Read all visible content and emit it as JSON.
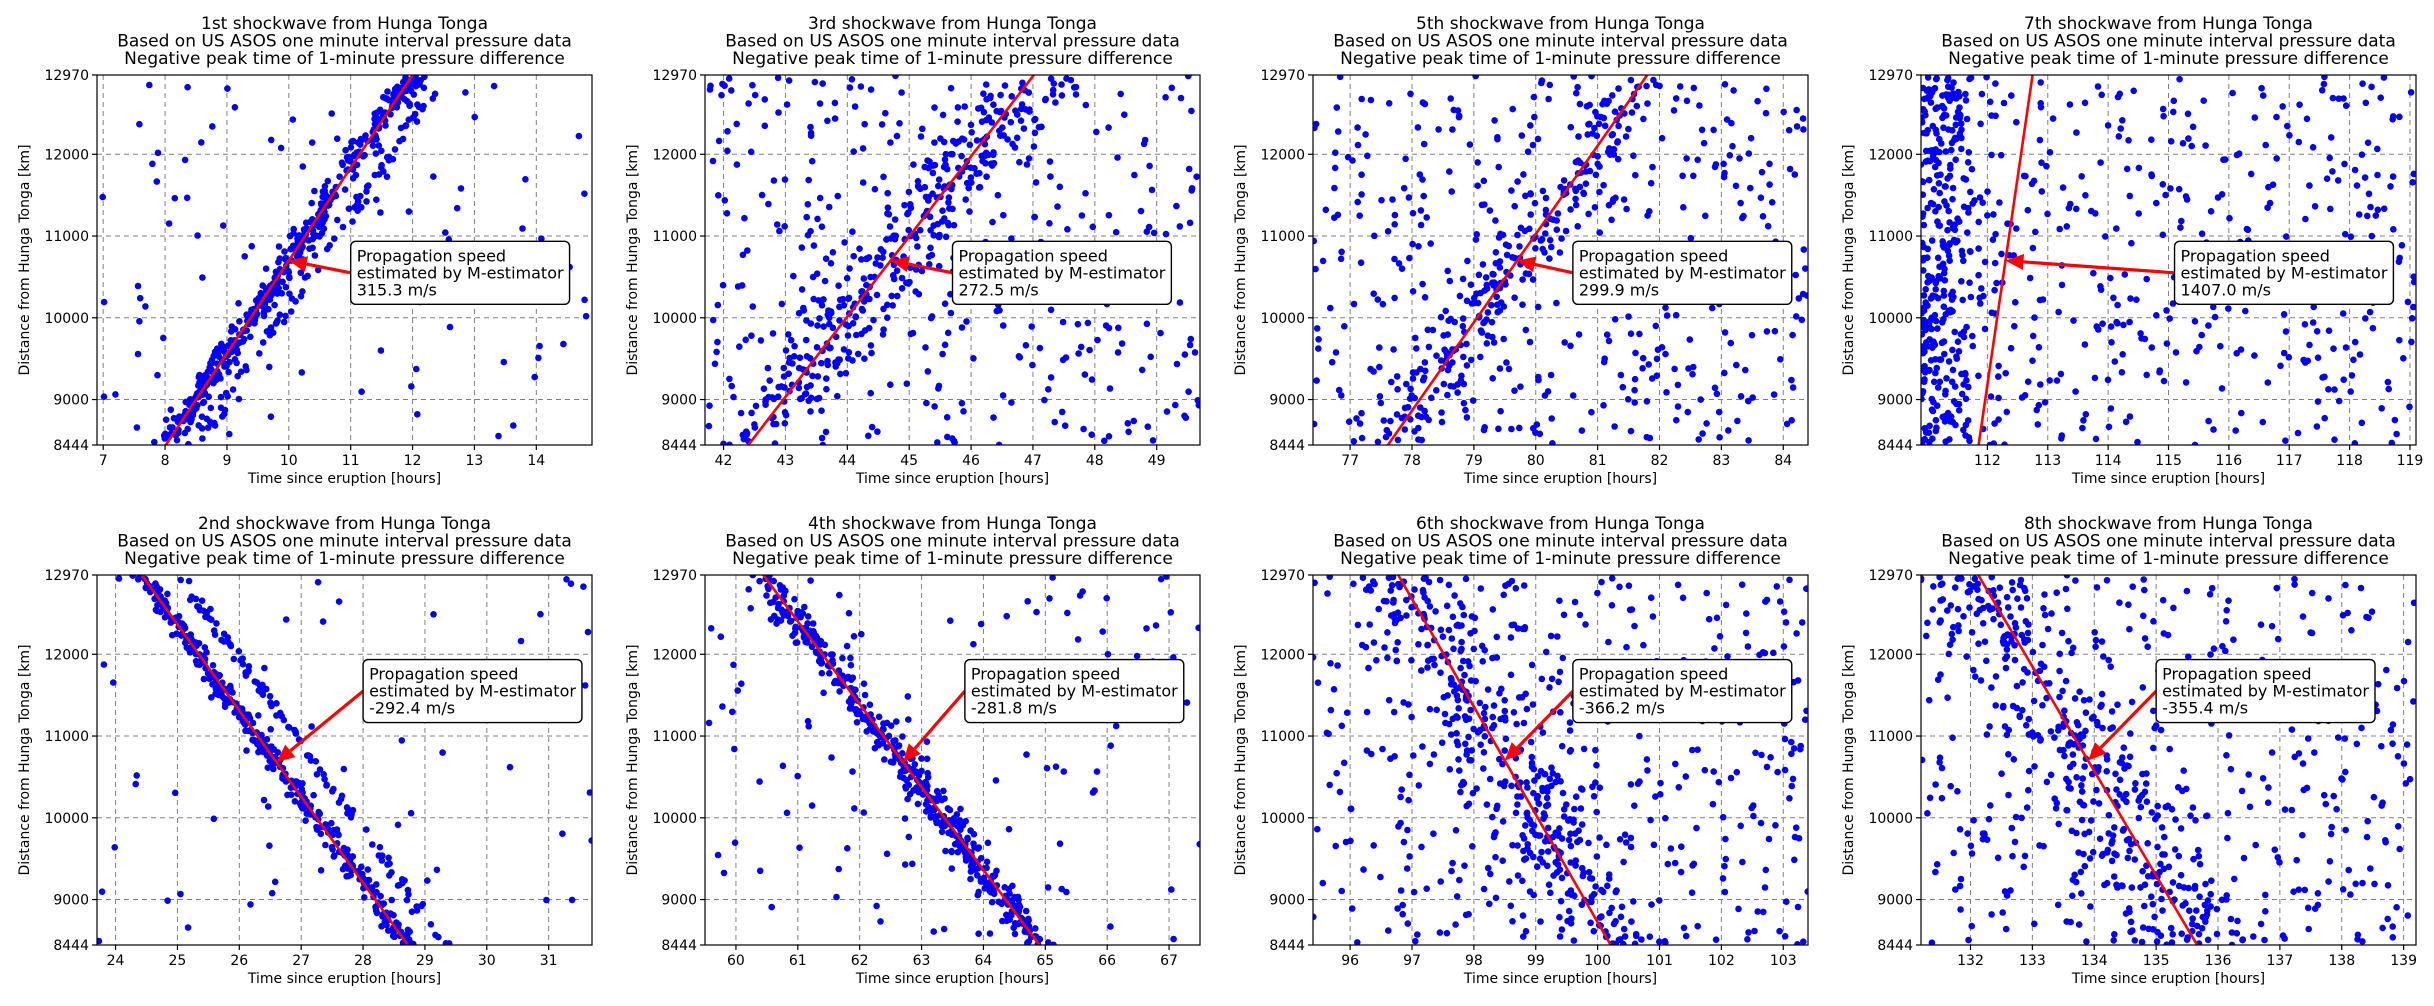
{
  "chart_data": [
    {
      "type": "scatter",
      "title": [
        "1st shockwave from Hunga Tonga",
        "Based on US ASOS one minute interval pressure data",
        "Negative peak time of 1-minute pressure difference"
      ],
      "xlabel": "Time since eruption [hours]",
      "ylabel": "Distance from Hunga Tonga [km]",
      "xlim": [
        6.9,
        14.9
      ],
      "ylim": [
        8444,
        12970
      ],
      "xticks": [
        7,
        8,
        9,
        10,
        11,
        12,
        13,
        14
      ],
      "yticks": [
        8444,
        9000,
        10000,
        11000,
        12000,
        12970
      ],
      "grid": true,
      "fit_line": {
        "slope_per_hour": 1135,
        "x0": 10.0,
        "y0": 10700,
        "color": "#ff0000"
      },
      "annotation": {
        "lines": [
          "Propagation speed",
          "estimated by M-estimator",
          "315.3 m/s"
        ],
        "arrow_target": [
          10.0,
          10700
        ],
        "box_anchor": [
          11.0,
          10550
        ]
      },
      "series_color": "#0000ff",
      "scatter": {
        "n_fit": 420,
        "n_fit2": 90,
        "n_noise": 90,
        "fit_spread": 0.12,
        "offset2": 0.5
      }
    },
    {
      "type": "scatter",
      "title": [
        "2nd shockwave from Hunga Tonga",
        "Based on US ASOS one minute interval pressure data",
        "Negative peak time of 1-minute pressure difference"
      ],
      "xlabel": "Time since eruption [hours]",
      "ylabel": "Distance from Hunga Tonga [km]",
      "xlim": [
        23.7,
        31.7
      ],
      "ylim": [
        8444,
        12970
      ],
      "xticks": [
        24,
        25,
        26,
        27,
        28,
        29,
        30,
        31
      ],
      "yticks": [
        8444,
        9000,
        10000,
        11000,
        12000,
        12970
      ],
      "grid": true,
      "fit_line": {
        "slope_per_hour": -1053,
        "x0": 26.6,
        "y0": 10680,
        "color": "#ff0000"
      },
      "annotation": {
        "lines": [
          "Propagation speed",
          "estimated by M-estimator",
          "-292.4 m/s"
        ],
        "arrow_target": [
          26.6,
          10680
        ],
        "box_anchor": [
          28.0,
          11550
        ]
      },
      "series_color": "#0000ff",
      "scatter": {
        "n_fit": 360,
        "n_fit2": 110,
        "n_noise": 60,
        "fit_spread": 0.09,
        "offset2": 0.6
      }
    },
    {
      "type": "scatter",
      "title": [
        "3rd shockwave from Hunga Tonga",
        "Based on US ASOS one minute interval pressure data",
        "Negative peak time of 1-minute pressure difference"
      ],
      "xlabel": "Time since eruption [hours]",
      "ylabel": "Distance from Hunga Tonga [km]",
      "xlim": [
        41.7,
        49.7
      ],
      "ylim": [
        8444,
        12970
      ],
      "xticks": [
        42,
        43,
        44,
        45,
        46,
        47,
        48,
        49
      ],
      "yticks": [
        8444,
        9000,
        10000,
        11000,
        12000,
        12970
      ],
      "grid": true,
      "fit_line": {
        "slope_per_hour": 981,
        "x0": 44.7,
        "y0": 10700,
        "color": "#ff0000"
      },
      "annotation": {
        "lines": [
          "Propagation speed",
          "estimated by M-estimator",
          "272.5 m/s"
        ],
        "arrow_target": [
          44.7,
          10700
        ],
        "box_anchor": [
          45.7,
          10550
        ]
      },
      "series_color": "#0000ff",
      "scatter": {
        "n_fit": 330,
        "n_fit2": 0,
        "n_noise": 360,
        "fit_spread": 0.45,
        "offset2": 0
      }
    },
    {
      "type": "scatter",
      "title": [
        "4th shockwave from Hunga Tonga",
        "Based on US ASOS one minute interval pressure data",
        "Negative peak time of 1-minute pressure difference"
      ],
      "xlabel": "Time since eruption [hours]",
      "ylabel": "Distance from Hunga Tonga [km]",
      "xlim": [
        59.5,
        67.5
      ],
      "ylim": [
        8444,
        12970
      ],
      "xticks": [
        60,
        61,
        62,
        63,
        64,
        65,
        66,
        67
      ],
      "yticks": [
        8444,
        9000,
        10000,
        11000,
        12000,
        12970
      ],
      "grid": true,
      "fit_line": {
        "slope_per_hour": -1014,
        "x0": 62.7,
        "y0": 10680,
        "color": "#ff0000"
      },
      "annotation": {
        "lines": [
          "Propagation speed",
          "estimated by M-estimator",
          "-281.8 m/s"
        ],
        "arrow_target": [
          62.7,
          10680
        ],
        "box_anchor": [
          63.7,
          11550
        ]
      },
      "series_color": "#0000ff",
      "scatter": {
        "n_fit": 420,
        "n_fit2": 0,
        "n_noise": 120,
        "fit_spread": 0.14,
        "offset2": 0
      }
    },
    {
      "type": "scatter",
      "title": [
        "5th shockwave from Hunga Tonga",
        "Based on US ASOS one minute interval pressure data",
        "Negative peak time of 1-minute pressure difference"
      ],
      "xlabel": "Time since eruption [hours]",
      "ylabel": "Distance from Hunga Tonga [km]",
      "xlim": [
        76.4,
        84.4
      ],
      "ylim": [
        8444,
        12970
      ],
      "xticks": [
        77,
        78,
        79,
        80,
        81,
        82,
        83,
        84
      ],
      "yticks": [
        8444,
        9000,
        10000,
        11000,
        12000,
        12970
      ],
      "grid": true,
      "fit_line": {
        "slope_per_hour": 1080,
        "x0": 79.7,
        "y0": 10700,
        "color": "#ff0000"
      },
      "annotation": {
        "lines": [
          "Propagation speed",
          "estimated by M-estimator",
          "299.9 m/s"
        ],
        "arrow_target": [
          79.7,
          10700
        ],
        "box_anchor": [
          80.6,
          10550
        ]
      },
      "series_color": "#0000ff",
      "scatter": {
        "n_fit": 230,
        "n_fit2": 0,
        "n_noise": 420,
        "fit_spread": 0.35,
        "offset2": 0
      }
    },
    {
      "type": "scatter",
      "title": [
        "6th shockwave from Hunga Tonga",
        "Based on US ASOS one minute interval pressure data",
        "Negative peak time of 1-minute pressure difference"
      ],
      "xlabel": "Time since eruption [hours]",
      "ylabel": "Distance from Hunga Tonga [km]",
      "xlim": [
        95.4,
        103.4
      ],
      "ylim": [
        8444,
        12970
      ],
      "xticks": [
        96,
        97,
        98,
        99,
        100,
        101,
        102,
        103
      ],
      "yticks": [
        8444,
        9000,
        10000,
        11000,
        12000,
        12970
      ],
      "grid": true,
      "fit_line": {
        "slope_per_hour": -1318,
        "x0": 98.5,
        "y0": 10700,
        "color": "#ff0000"
      },
      "annotation": {
        "lines": [
          "Propagation speed",
          "estimated by M-estimator",
          "-366.2 m/s"
        ],
        "arrow_target": [
          98.5,
          10700
        ],
        "box_anchor": [
          99.6,
          11550
        ]
      },
      "series_color": "#0000ff",
      "scatter": {
        "n_fit": 330,
        "n_fit2": 0,
        "n_noise": 420,
        "fit_spread": 0.45,
        "offset2": 0
      }
    },
    {
      "type": "scatter",
      "title": [
        "7th shockwave from Hunga Tonga",
        "Based on US ASOS one minute interval pressure data",
        "Negative peak time of 1-minute pressure difference"
      ],
      "xlabel": "Time since eruption [hours]",
      "ylabel": "Distance from Hunga Tonga [km]",
      "xlim": [
        110.9,
        119.1
      ],
      "ylim": [
        8444,
        12970
      ],
      "xticks": [
        112,
        113,
        114,
        115,
        116,
        117,
        118,
        119
      ],
      "yticks": [
        8444,
        9000,
        10000,
        11000,
        12000,
        12970
      ],
      "grid": true,
      "fit_line": {
        "slope_per_hour": 5065,
        "x0": 112.3,
        "y0": 10700,
        "color": "#ff0000"
      },
      "annotation": {
        "lines": [
          "Propagation speed",
          "estimated by M-estimator",
          "1407.0 m/s"
        ],
        "arrow_target": [
          112.3,
          10700
        ],
        "box_anchor": [
          115.1,
          10550
        ]
      },
      "series_color": "#0000ff",
      "scatter": {
        "n_fit": 0,
        "n_fit2": 0,
        "n_noise": 420,
        "fit_spread": 0,
        "offset2": 0,
        "left_cluster": 300
      }
    },
    {
      "type": "scatter",
      "title": [
        "8th shockwave from Hunga Tonga",
        "Based on US ASOS one minute interval pressure data",
        "Negative peak time of 1-minute pressure difference"
      ],
      "xlabel": "Time since eruption [hours]",
      "ylabel": "Distance from Hunga Tonga [km]",
      "xlim": [
        131.2,
        139.2
      ],
      "ylim": [
        8444,
        12970
      ],
      "xticks": [
        132,
        133,
        134,
        135,
        136,
        137,
        138,
        139
      ],
      "yticks": [
        8444,
        9000,
        10000,
        11000,
        12000,
        12970
      ],
      "grid": true,
      "fit_line": {
        "slope_per_hour": -1279,
        "x0": 133.9,
        "y0": 10700,
        "color": "#ff0000"
      },
      "annotation": {
        "lines": [
          "Propagation speed",
          "estimated by M-estimator",
          "-355.4 m/s"
        ],
        "arrow_target": [
          133.9,
          10700
        ],
        "box_anchor": [
          135.0,
          11550
        ]
      },
      "series_color": "#0000ff",
      "scatter": {
        "n_fit": 330,
        "n_fit2": 0,
        "n_noise": 380,
        "fit_spread": 0.55,
        "offset2": 0
      }
    }
  ]
}
